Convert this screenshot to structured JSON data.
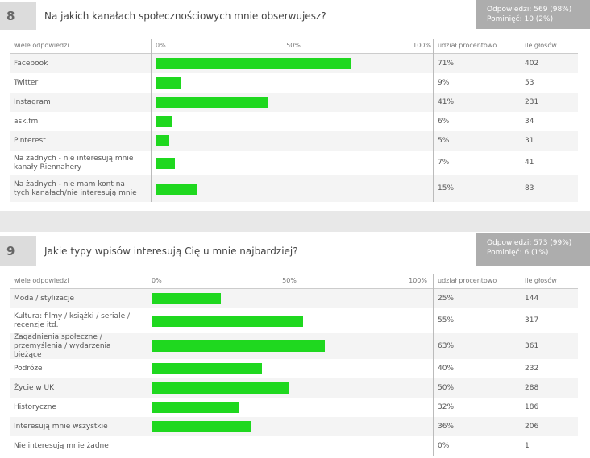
{
  "questions": [
    {
      "number": "8",
      "title": "Na jakich kanałach społecznościowych mnie obserwujesz?",
      "stats": [
        "Odpowiedzi: 569 (98%)",
        "Pominięć: 10 (2%)"
      ],
      "headers": {
        "answers": "wiele odpowiedzi",
        "percent": "udział procentowo",
        "votes": "ile głosów"
      },
      "ticks": [
        {
          "value": 0,
          "label": "0%"
        },
        {
          "value": 50,
          "label": "50%"
        },
        {
          "value": 100,
          "label": "100%"
        }
      ],
      "rows": [
        {
          "label": "Facebook",
          "percent": 71,
          "percent_label": "71%",
          "votes": 402
        },
        {
          "label": "Twitter",
          "percent": 9,
          "percent_label": "9%",
          "votes": 53
        },
        {
          "label": "Instagram",
          "percent": 41,
          "percent_label": "41%",
          "votes": 231
        },
        {
          "label": "ask.fm",
          "percent": 6,
          "percent_label": "6%",
          "votes": 34
        },
        {
          "label": "Pinterest",
          "percent": 5,
          "percent_label": "5%",
          "votes": 31
        },
        {
          "label": "Na żadnych - nie interesują mnie kanały Riennahery",
          "percent": 7,
          "percent_label": "7%",
          "votes": 41
        },
        {
          "label": "Na żadnych - nie mam kont na tych kanałach/nie interesują mnie",
          "percent": 15,
          "percent_label": "15%",
          "votes": 83
        }
      ]
    },
    {
      "number": "9",
      "title": "Jakie typy wpisów interesują Cię u mnie najbardziej?",
      "stats": [
        "Odpowiedzi: 573 (99%)",
        "Pominięć: 6 (1%)"
      ],
      "headers": {
        "answers": "wiele odpowiedzi",
        "percent": "udział procentowo",
        "votes": "ile głosów"
      },
      "ticks": [
        {
          "value": 0,
          "label": "0%"
        },
        {
          "value": 50,
          "label": "50%"
        },
        {
          "value": 100,
          "label": "100%"
        }
      ],
      "rows": [
        {
          "label": "Moda / stylizacje",
          "percent": 25,
          "percent_label": "25%",
          "votes": 144
        },
        {
          "label": "Kultura: filmy / książki / seriale / recenzje itd.",
          "percent": 55,
          "percent_label": "55%",
          "votes": 317
        },
        {
          "label": "Zagadnienia społeczne / przemyślenia / wydarzenia bieżące",
          "percent": 63,
          "percent_label": "63%",
          "votes": 361
        },
        {
          "label": "Podróże",
          "percent": 40,
          "percent_label": "40%",
          "votes": 232
        },
        {
          "label": "Życie w UK",
          "percent": 50,
          "percent_label": "50%",
          "votes": 288
        },
        {
          "label": "Historyczne",
          "percent": 32,
          "percent_label": "32%",
          "votes": 186
        },
        {
          "label": "Interesują mnie wszystkie",
          "percent": 36,
          "percent_label": "36%",
          "votes": 206
        },
        {
          "label": "Nie interesują mnie żadne",
          "percent": 0,
          "percent_label": "0%",
          "votes": 1
        }
      ]
    }
  ]
}
